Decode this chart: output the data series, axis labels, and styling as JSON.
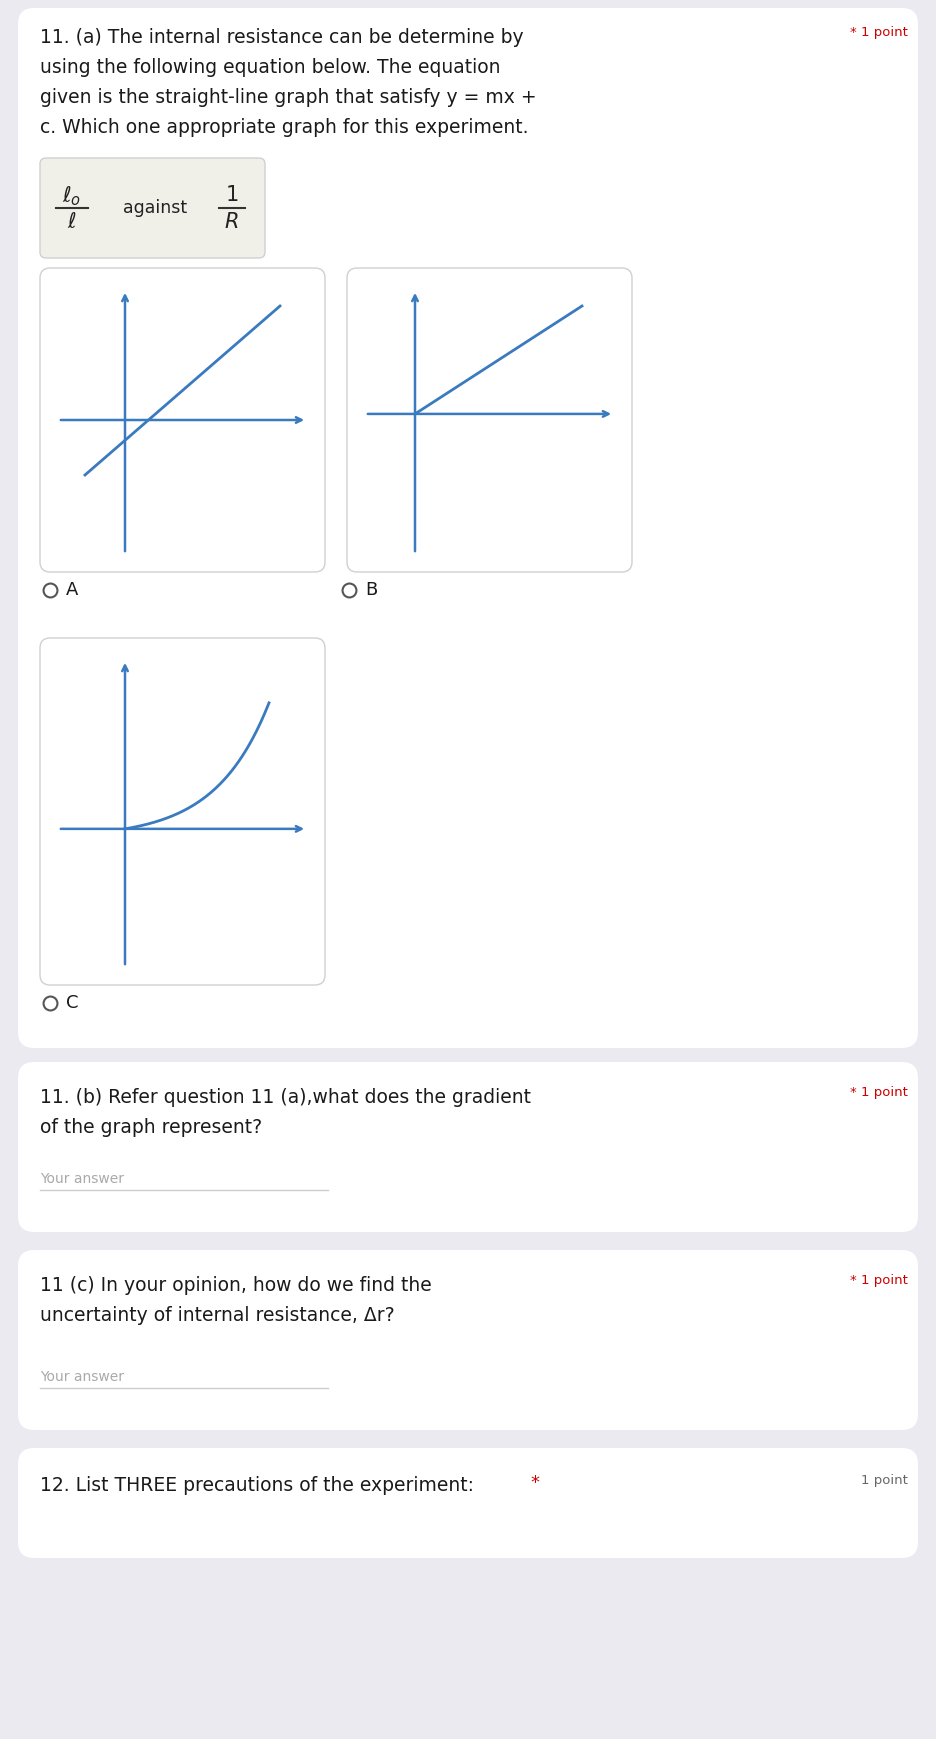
{
  "bg_color": "#eaeaf0",
  "card_bg": "#ffffff",
  "line_color": "#3a7abf",
  "text_color": "#1a1a1a",
  "gray_text": "#aaaaaa",
  "answer_line_color": "#cccccc",
  "q11a_lines": [
    "11. (a) The internal resistance can be determine by",
    "using the following equation below. The equation",
    "given is the straight-line graph that satisfy y = mx +",
    "c. Which one appropriate graph for this experiment."
  ],
  "q11b_line1": "11. (b) Refer question 11 (a),what does the gradient",
  "q11b_line2": "of the graph represent?",
  "q11b_star": "* 1 point",
  "q11c_line1": "11 (c) In your opinion, how do we find the",
  "q11c_line2": "uncertainty of internal resistance, Δr?",
  "q11c_star": "* 1 point",
  "q12_line1": "12. List THREE precautions of the experiment:",
  "q12_star": "*",
  "q12_point": "1 point",
  "your_answer": "Your answer",
  "star_1pt": "* 1 point"
}
